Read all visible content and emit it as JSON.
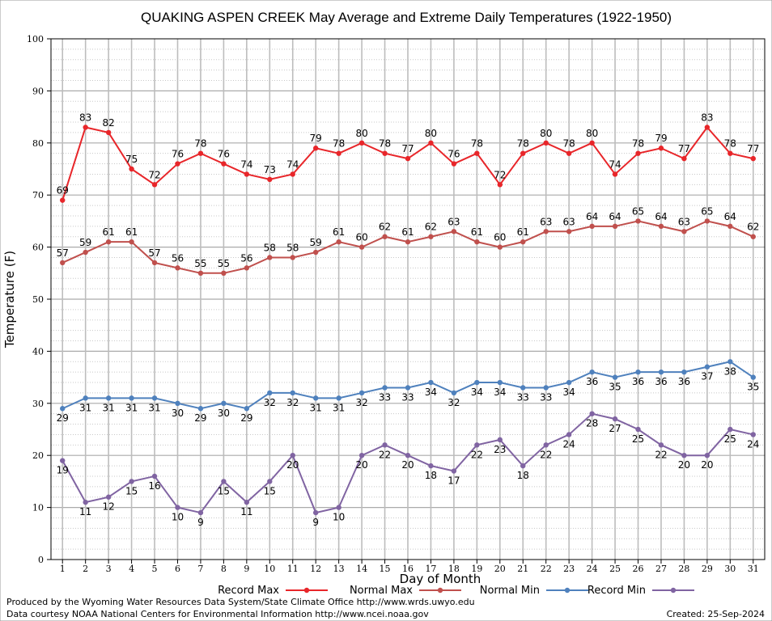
{
  "chart_data": {
    "type": "line",
    "title": "QUAKING ASPEN CREEK May Average and Extreme Daily Temperatures (1922-1950)",
    "xlabel": "Day of Month",
    "ylabel": "Temperature (F)",
    "ylim": [
      0,
      100
    ],
    "yticks": [
      0,
      10,
      20,
      30,
      40,
      50,
      60,
      70,
      80,
      90,
      100
    ],
    "x": [
      1,
      2,
      3,
      4,
      5,
      6,
      7,
      8,
      9,
      10,
      11,
      12,
      13,
      14,
      15,
      16,
      17,
      18,
      19,
      20,
      21,
      22,
      23,
      24,
      25,
      26,
      27,
      28,
      29,
      30,
      31
    ],
    "grid": true,
    "legend_position": "bottom",
    "series": [
      {
        "name": "Record Max",
        "color": "#e8262a",
        "label_pos": "above",
        "values": [
          69,
          83,
          82,
          75,
          72,
          76,
          78,
          76,
          74,
          73,
          74,
          79,
          78,
          80,
          78,
          77,
          80,
          76,
          78,
          72,
          78,
          80,
          78,
          80,
          74,
          78,
          79,
          77,
          83,
          78,
          77
        ]
      },
      {
        "name": "Normal Max",
        "color": "#c0504d",
        "label_pos": "above",
        "values": [
          57,
          59,
          61,
          61,
          57,
          56,
          55,
          55,
          56,
          58,
          58,
          59,
          61,
          60,
          62,
          61,
          62,
          63,
          61,
          60,
          61,
          63,
          63,
          64,
          64,
          65,
          64,
          63,
          65,
          64,
          62
        ]
      },
      {
        "name": "Normal Min",
        "color": "#4f81bd",
        "label_pos": "below",
        "values": [
          29,
          31,
          31,
          31,
          31,
          30,
          29,
          30,
          29,
          32,
          32,
          31,
          31,
          32,
          33,
          33,
          34,
          32,
          34,
          34,
          33,
          33,
          34,
          36,
          35,
          36,
          36,
          36,
          37,
          38,
          35
        ]
      },
      {
        "name": "Record Min",
        "color": "#8064a2",
        "label_pos": "below",
        "values": [
          19,
          11,
          12,
          15,
          16,
          10,
          9,
          15,
          11,
          15,
          20,
          9,
          10,
          20,
          22,
          20,
          18,
          17,
          22,
          23,
          18,
          22,
          24,
          28,
          27,
          25,
          22,
          20,
          20,
          25,
          24
        ]
      }
    ]
  },
  "footer": {
    "produced_by": "Produced by the Wyoming Water Resources Data System/State Climate Office http://www.wrds.uwyo.edu",
    "courtesy": "Data courtesy NOAA National Centers for Environmental Information http://www.ncei.noaa.gov",
    "created": "Created:  25-Sep-2024"
  }
}
